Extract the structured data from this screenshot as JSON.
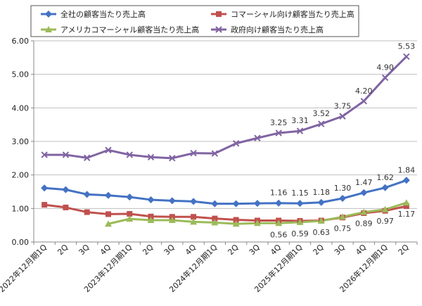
{
  "chart_data": {
    "type": "line",
    "categories": [
      "2022年12月期1Q",
      "2Q",
      "3Q",
      "4Q",
      "2023年12月期1Q",
      "2Q",
      "3Q",
      "4Q",
      "2024年12月期1Q",
      "2Q",
      "3Q",
      "4Q",
      "2025年12月期1Q",
      "2Q",
      "3Q",
      "4Q",
      "2026年12月期1Q",
      "2Q"
    ],
    "ylim": [
      0,
      6
    ],
    "yticks": [
      "0.00",
      "1.00",
      "2.00",
      "3.00",
      "4.00",
      "5.00",
      "6.00"
    ],
    "grid": true,
    "legend_position": "top",
    "series": [
      {
        "name": "全社の顧客当たり売上高",
        "color": "#4472C4",
        "marker": "diamond",
        "values": [
          1.61,
          1.56,
          1.42,
          1.39,
          1.34,
          1.26,
          1.23,
          1.21,
          1.14,
          1.14,
          1.15,
          1.16,
          1.15,
          1.18,
          1.3,
          1.47,
          1.62,
          1.84
        ]
      },
      {
        "name": "コマーシャル向け顧客当たり売上高",
        "color": "#C0504D",
        "marker": "square",
        "values": [
          1.11,
          1.03,
          0.89,
          0.83,
          0.84,
          0.76,
          0.75,
          0.75,
          0.7,
          0.66,
          0.64,
          0.64,
          0.63,
          0.64,
          0.73,
          0.86,
          0.93,
          1.07
        ]
      },
      {
        "name": "アメリカコマーシャル顧客当たり売上高",
        "color": "#9BBB59",
        "marker": "triangle",
        "values": [
          null,
          null,
          null,
          0.54,
          0.69,
          0.65,
          0.65,
          0.6,
          0.58,
          0.54,
          0.56,
          0.56,
          0.59,
          0.63,
          0.75,
          0.89,
          0.97,
          1.17
        ]
      },
      {
        "name": "政府向け顧客当たり売上高",
        "color": "#8064A2",
        "marker": "x",
        "values": [
          2.6,
          2.6,
          2.51,
          2.74,
          2.6,
          2.53,
          2.5,
          2.65,
          2.64,
          2.94,
          3.1,
          3.25,
          3.31,
          3.52,
          3.75,
          4.2,
          4.9,
          5.53
        ]
      }
    ],
    "data_labels": [
      {
        "series": 3,
        "index": 11,
        "text": "3.25"
      },
      {
        "series": 3,
        "index": 12,
        "text": "3.31"
      },
      {
        "series": 3,
        "index": 13,
        "text": "3.52"
      },
      {
        "series": 3,
        "index": 14,
        "text": "3.75"
      },
      {
        "series": 3,
        "index": 15,
        "text": "4.20"
      },
      {
        "series": 3,
        "index": 16,
        "text": "4.90"
      },
      {
        "series": 3,
        "index": 17,
        "text": "5.53"
      },
      {
        "series": 0,
        "index": 11,
        "text": "1.16"
      },
      {
        "series": 0,
        "index": 12,
        "text": "1.15"
      },
      {
        "series": 0,
        "index": 13,
        "text": "1.18"
      },
      {
        "series": 0,
        "index": 14,
        "text": "1.30"
      },
      {
        "series": 0,
        "index": 15,
        "text": "1.47"
      },
      {
        "series": 0,
        "index": 16,
        "text": "1.62"
      },
      {
        "series": 0,
        "index": 17,
        "text": "1.84"
      },
      {
        "series": 2,
        "index": 11,
        "text": "0.56"
      },
      {
        "series": 2,
        "index": 12,
        "text": "0.59"
      },
      {
        "series": 2,
        "index": 13,
        "text": "0.63"
      },
      {
        "series": 2,
        "index": 14,
        "text": "0.75"
      },
      {
        "series": 2,
        "index": 15,
        "text": "0.89"
      },
      {
        "series": 2,
        "index": 16,
        "text": "0.97"
      },
      {
        "series": 2,
        "index": 17,
        "text": "1.17"
      }
    ]
  }
}
